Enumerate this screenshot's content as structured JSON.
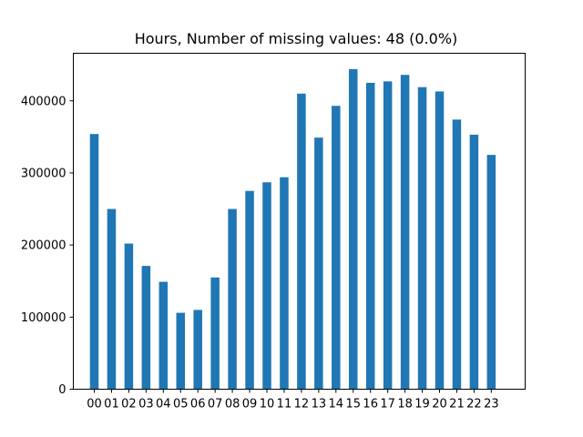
{
  "chart_data": {
    "type": "bar",
    "title": "Hours,  Number of missing values: 48 (0.0%)",
    "xlabel": "",
    "ylabel": "",
    "categories": [
      "00",
      "01",
      "02",
      "03",
      "04",
      "05",
      "06",
      "07",
      "08",
      "09",
      "10",
      "11",
      "12",
      "13",
      "14",
      "15",
      "16",
      "17",
      "18",
      "19",
      "20",
      "21",
      "22",
      "23"
    ],
    "values": [
      354000,
      250000,
      202000,
      171000,
      149000,
      106000,
      110000,
      155000,
      250000,
      275000,
      287000,
      294000,
      410000,
      349000,
      393000,
      444000,
      425000,
      427000,
      436000,
      419000,
      413000,
      374000,
      353000,
      325000
    ],
    "ylim": [
      0,
      466000
    ],
    "yticks": [
      0,
      100000,
      200000,
      300000,
      400000
    ],
    "ytick_labels": [
      "0",
      "100000",
      "200000",
      "300000",
      "400000"
    ],
    "bar_color": "#1f77b4",
    "grid": false,
    "legend": "none"
  }
}
